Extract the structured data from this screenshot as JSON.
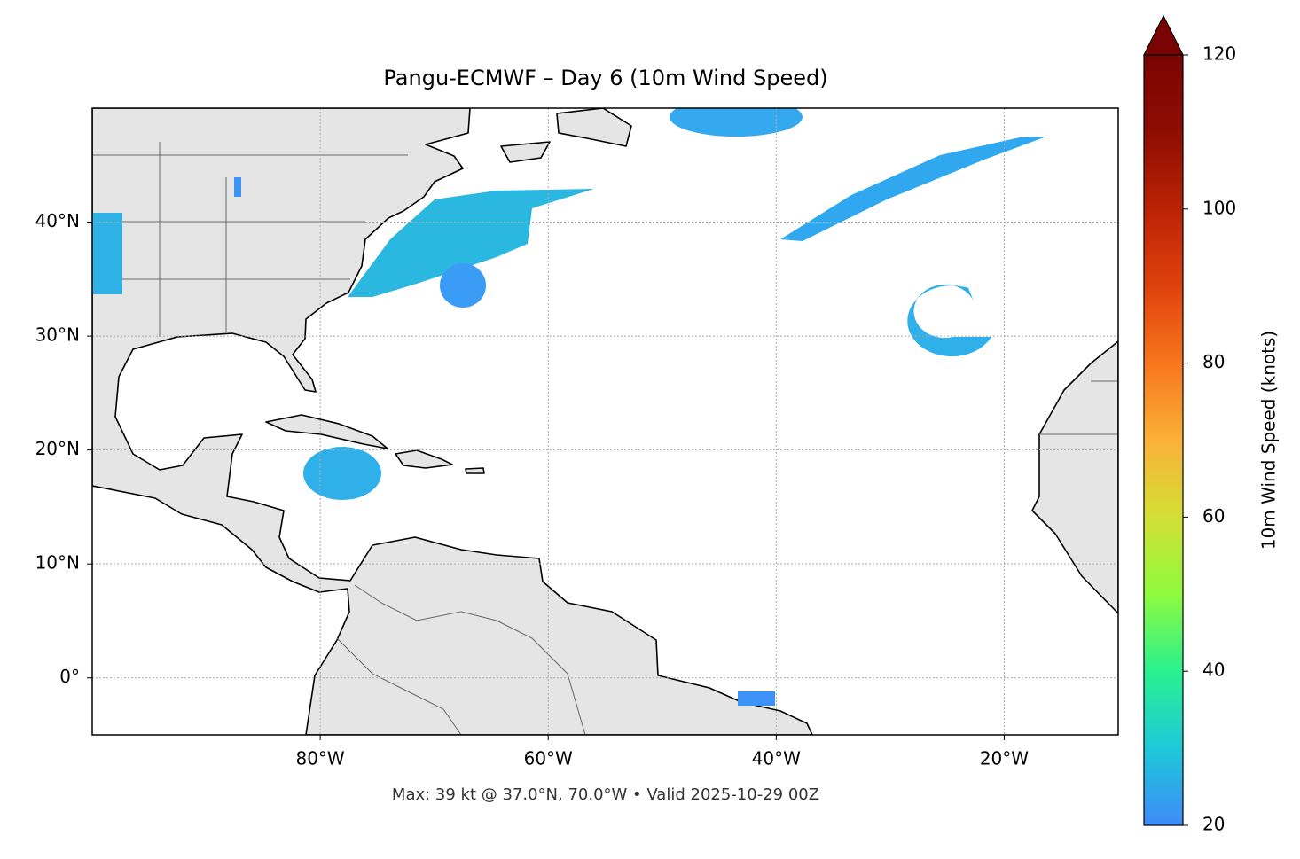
{
  "map": {
    "title": "Pangu-ECMWF – Day 6 (10m Wind Speed)",
    "footer": "Max: 39 kt @ 37.0°N, 70.0°W • Valid 2025-10-29 00Z",
    "xlim": [
      -100,
      -10
    ],
    "ylim": [
      -5,
      50
    ],
    "xticks": [
      {
        "value": -80,
        "label": "80°W"
      },
      {
        "value": -60,
        "label": "60°W"
      },
      {
        "value": -40,
        "label": "40°W"
      },
      {
        "value": -20,
        "label": "20°W"
      }
    ],
    "yticks": [
      {
        "value": 0,
        "label": "0°"
      },
      {
        "value": 10,
        "label": "10°N"
      },
      {
        "value": 20,
        "label": "20°N"
      },
      {
        "value": 30,
        "label": "30°N"
      },
      {
        "value": 40,
        "label": "40°N"
      }
    ],
    "grid": true,
    "colorbar": {
      "label": "10m Wind Speed (knots)",
      "lim": [
        20,
        120
      ],
      "ticks": [
        20,
        40,
        60,
        80,
        100,
        120
      ],
      "extend": "max",
      "colors": [
        "#3f8af8",
        "#1dc9d9",
        "#2af18f",
        "#8ffa3f",
        "#d3df35",
        "#fbb138",
        "#f8761d",
        "#df410d",
        "#bb2305",
        "#8e0d02",
        "#7a0403"
      ]
    }
  }
}
